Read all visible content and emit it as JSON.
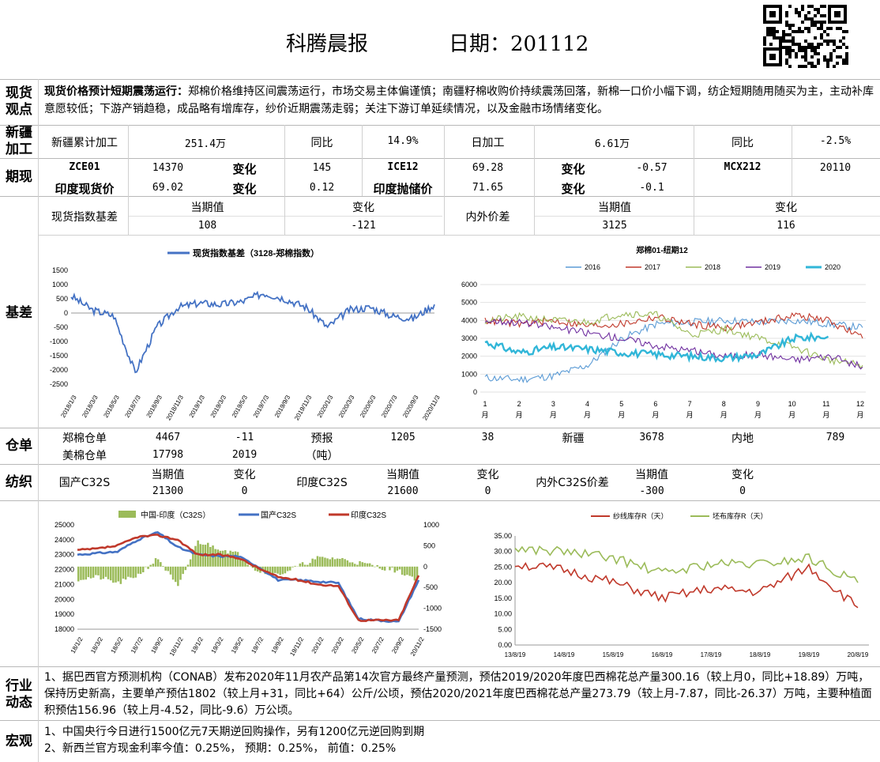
{
  "header": {
    "title": "科腾晨报",
    "date_label": "日期：201112"
  },
  "sections": {
    "spot_view": "现货观点",
    "xinjiang": "新疆加工",
    "futures": "期现",
    "basis": "基差",
    "warehouse": "仓单",
    "textile": "纺织",
    "industry": "行业动态",
    "macro": "宏观"
  },
  "spot_view": {
    "headline": "现货价格预计短期震荡运行：",
    "body": "郑棉价格维持区间震荡运行，市场交易主体偏谨慎；南疆籽棉收购价持续震荡回落，新棉一口价小幅下调，纺企短期随用随买为主，主动补库意愿较低；下游产销趋稳，成品略有增库存，纱价近期震荡走弱；关注下游订单延续情况，以及金融市场情绪变化。"
  },
  "xinjiang": {
    "label1": "新疆累计加工",
    "val1": "251.4万",
    "yoy_label1": "同比",
    "yoy1": "14.9%",
    "label2": "日加工",
    "val2": "6.61万",
    "yoy_label2": "同比",
    "yoy2": "-2.5%"
  },
  "futures": {
    "r1": {
      "a": "ZCE01",
      "b": "14370",
      "c": "变化",
      "d": "145",
      "e": "ICE12",
      "f": "69.28",
      "g": "变化",
      "h": "-0.57",
      "i": "MCX212",
      "j": "20110"
    },
    "r2": {
      "a": "印度现货价",
      "b": "69.02",
      "c": "变化",
      "d": "0.12",
      "e": "印度抛储价",
      "f": "71.65",
      "g": "变化",
      "h": "-0.1"
    }
  },
  "basis_table": {
    "l1": "现货指数基差",
    "h1": "当期值",
    "h2": "变化",
    "v1": "108",
    "v2": "-121",
    "l2": "内外价差",
    "h3": "当期值",
    "h4": "变化",
    "v3": "3125",
    "v4": "116"
  },
  "warehouse": {
    "l1": "郑棉仓单",
    "v1": "4467",
    "c1": "-11",
    "l2": "预报",
    "v2": "1205",
    "c2": "38",
    "l3": "新疆",
    "v3": "3678",
    "l4": "内地",
    "v4": "789",
    "l5": "美棉仓单",
    "v5": "17798",
    "c5": "2019",
    "unit": "（吨）"
  },
  "textile": {
    "l1": "国产C32S",
    "h1": "当期值",
    "h2": "变化",
    "v1": "21300",
    "c1": "0",
    "l2": "印度C32S",
    "h3": "当期值",
    "h4": "变化",
    "v2": "21600",
    "c2": "0",
    "l3": "内外C32S价差",
    "h5": "当期值",
    "h6": "变化",
    "v3": "-300",
    "c3": "0"
  },
  "industry": "1、据巴西官方预测机构（CONAB）发布2020年11月农产品第14次官方最终产量预测，预估2019/2020年度巴西棉花总产量300.16（较上月0，同比+18.89）万吨，保持历史新高，主要单产预估1802（较上月+31，同比+64）公斤/公顷，预估2020/2021年度巴西棉花总产量273.79（较上月-7.87，同比-26.37）万吨，主要种植面积预估156.96（较上月-4.52，同比-9.6）万公顷。",
  "macro": {
    "l1": "1、中国央行今日进行1500亿元7天期逆回购操作，另有1200亿元逆回购到期",
    "l2": "2、新西兰官方现金利率今值：0.25%， 预期：0.25%， 前值：0.25%"
  },
  "colors": {
    "blue": "#4472c4",
    "red": "#c0392b",
    "green": "#9bbb59",
    "purple": "#7030a0",
    "teal": "#31b6d8",
    "olive": "#9aae4a",
    "lightblue": "#5b9bd5"
  },
  "chart_data": [
    {
      "type": "line",
      "title": "",
      "legend": [
        "现货指数基差（3128-郑棉指数）"
      ],
      "x": [
        "2018/1/3",
        "2018/3/3",
        "2018/5/3",
        "2018/7/3",
        "2018/9/3",
        "2018/11/3",
        "2019/1/3",
        "2019/3/3",
        "2019/5/3",
        "2019/7/3",
        "2019/9/3",
        "2019/11/3",
        "2020/1/3",
        "2020/3/3",
        "2020/5/3",
        "2020/7/3",
        "2020/9/3",
        "2020/11/3"
      ],
      "ylim": [
        -2500,
        1500
      ],
      "yticks": [
        1500,
        1000,
        500,
        0,
        -500,
        -1000,
        -1500,
        -2000,
        -2500
      ],
      "series": [
        {
          "name": "现货指数基差（3128-郑棉指数）",
          "values": [
            600,
            100,
            -100,
            -2100,
            -500,
            200,
            350,
            300,
            400,
            700,
            500,
            200,
            -500,
            100,
            200,
            -100,
            -200,
            300
          ]
        }
      ]
    },
    {
      "type": "line",
      "title": "郑棉01-纽期12",
      "ylim": [
        0,
        6000
      ],
      "yticks": [
        6000,
        5000,
        4000,
        3000,
        2000,
        1000,
        0
      ],
      "x": [
        "1月",
        "2月",
        "3月",
        "4月",
        "5月",
        "6月",
        "7月",
        "8月",
        "9月",
        "10月",
        "11月",
        "12月"
      ],
      "series": [
        {
          "name": "2016",
          "values": [
            800,
            700,
            900,
            1500,
            3000,
            3800,
            3900,
            4000,
            3900,
            4000,
            3800,
            3600
          ]
        },
        {
          "name": "2017",
          "values": [
            4000,
            3800,
            4000,
            3700,
            3800,
            4200,
            3800,
            3600,
            3900,
            4300,
            4000,
            3000
          ]
        },
        {
          "name": "2018",
          "values": [
            4000,
            4200,
            4000,
            3900,
            4400,
            4300,
            3200,
            3500,
            3000,
            2500,
            1800,
            1500
          ]
        },
        {
          "name": "2019",
          "values": [
            4000,
            3900,
            3600,
            3300,
            3000,
            2600,
            2300,
            2000,
            2100,
            1800,
            2000,
            1400
          ]
        },
        {
          "name": "2020",
          "values": [
            2800,
            2200,
            2500,
            2400,
            2200,
            2100,
            2000,
            1900,
            2100,
            3000,
            3100,
            null
          ]
        }
      ]
    },
    {
      "type": "line",
      "title": "",
      "legend": [
        "中国-印度（C32S）",
        "国产C32S",
        "印度C32S"
      ],
      "x": [
        "18/1/2",
        "18/3/2",
        "18/5/2",
        "18/7/2",
        "18/9/2",
        "18/11/2",
        "19/1/2",
        "19/3/2",
        "19/5/2",
        "19/7/2",
        "19/9/2",
        "19/11/2",
        "20/1/2",
        "20/3/2",
        "20/5/2",
        "20/7/2",
        "20/9/2",
        "20/11/2"
      ],
      "ylim": [
        18000,
        25000
      ],
      "y2lim": [
        -1500,
        1000
      ],
      "series": [
        {
          "name": "国产C32S",
          "values": [
            23000,
            23100,
            23200,
            24000,
            24500,
            23500,
            23000,
            22900,
            22900,
            22200,
            21300,
            21300,
            21200,
            21100,
            18700,
            18600,
            18500,
            21300
          ]
        },
        {
          "name": "印度C32S",
          "values": [
            23300,
            23400,
            23600,
            24200,
            24300,
            24000,
            23000,
            23000,
            22800,
            22100,
            21500,
            21300,
            21000,
            20900,
            18600,
            18600,
            18600,
            21600
          ]
        },
        {
          "name": "中国-印度（C32S）",
          "values": [
            -300,
            -250,
            -400,
            -200,
            200,
            -500,
            600,
            450,
            300,
            -100,
            -200,
            0,
            200,
            200,
            100,
            0,
            -100,
            -300
          ]
        }
      ]
    },
    {
      "type": "line",
      "title": "",
      "legend": [
        "纱线库存R（天）",
        "坯布库存R（天）"
      ],
      "x": [
        "13/8/19",
        "14/8/19",
        "15/8/19",
        "16/8/19",
        "17/8/19",
        "18/8/19",
        "19/8/19",
        "20/8/19"
      ],
      "ylim": [
        0,
        35
      ],
      "yticks": [
        "35.00",
        "30.00",
        "25.00",
        "20.00",
        "15.00",
        "10.00",
        "5.00",
        "0.00"
      ],
      "series": [
        {
          "name": "纱线库存R（天）",
          "values": [
            26,
            24,
            20,
            15,
            18,
            17,
            25,
            12
          ]
        },
        {
          "name": "坯布库存R（天）",
          "values": [
            31,
            30,
            28,
            23,
            26,
            26,
            28,
            20
          ]
        }
      ]
    }
  ]
}
